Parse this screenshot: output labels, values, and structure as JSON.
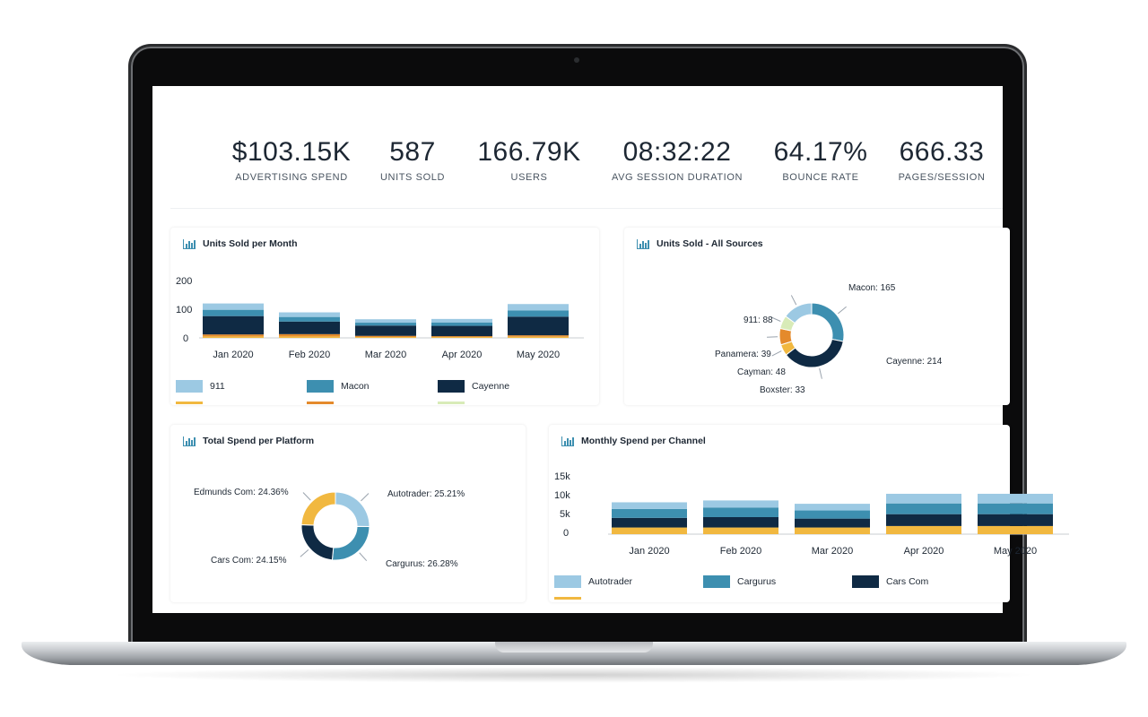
{
  "kpis": [
    {
      "value": "$103.15K",
      "label": "ADVERTISING SPEND"
    },
    {
      "value": "587",
      "label": "UNITS SOLD"
    },
    {
      "value": "166.79K",
      "label": "USERS"
    },
    {
      "value": "08:32:22",
      "label": "AVG SESSION DURATION"
    },
    {
      "value": "64.17%",
      "label": "BOUNCE RATE"
    },
    {
      "value": "666.33",
      "label": "PAGES/SESSION"
    }
  ],
  "colors": {
    "light_blue": "#9cc9e3",
    "mid_blue": "#3d8fb0",
    "navy": "#0f2a44",
    "yellow": "#f1b840",
    "orange": "#e48a2c",
    "pale_green": "#d8ebb8"
  },
  "cards": {
    "units_month": {
      "title": "Units Sold per Month"
    },
    "units_sources": {
      "title": "Units Sold - All Sources"
    },
    "spend_platform": {
      "title": "Total Spend per Platform"
    },
    "spend_channel": {
      "title": "Monthly Spend per Channel"
    }
  },
  "chart_data": [
    {
      "type": "bar",
      "stacked": true,
      "title": "Units Sold per Month",
      "categories": [
        "Jan 2020",
        "Feb 2020",
        "Mar 2020",
        "Apr 2020",
        "May 2020"
      ],
      "y_ticks": [
        "200",
        "100",
        "0"
      ],
      "ylim": [
        0,
        200
      ],
      "series": [
        {
          "name": "",
          "color": "#f1b840",
          "values": [
            5,
            5,
            3,
            3,
            4
          ]
        },
        {
          "name": "",
          "color": "#e48a2c",
          "values": [
            7,
            8,
            4,
            3,
            5
          ]
        },
        {
          "name": "Cayenne",
          "color": "#0f2a44",
          "values": [
            64,
            44,
            36,
            36,
            65
          ]
        },
        {
          "name": "Macon",
          "color": "#3d8fb0",
          "values": [
            22,
            16,
            10,
            12,
            22
          ]
        },
        {
          "name": "911",
          "color": "#9cc9e3",
          "values": [
            22,
            16,
            12,
            12,
            22
          ]
        }
      ],
      "legend": [
        {
          "name": "911",
          "color": "#9cc9e3"
        },
        {
          "name": "Macon",
          "color": "#3d8fb0"
        },
        {
          "name": "Cayenne",
          "color": "#0f2a44"
        }
      ],
      "legend_partial_colors": [
        "#f1b840",
        "#e48a2c",
        "#d8ebb8"
      ]
    },
    {
      "type": "pie",
      "donut": true,
      "title": "Units Sold - All Sources",
      "slices": [
        {
          "label": "Macon: 165",
          "value": 165,
          "color": "#3d8fb0"
        },
        {
          "label": "Cayenne: 214",
          "value": 214,
          "color": "#0f2a44"
        },
        {
          "label": "Boxster: 33",
          "value": 33,
          "color": "#f1b840"
        },
        {
          "label": "Cayman: 48",
          "value": 48,
          "color": "#e48a2c"
        },
        {
          "label": "Panamera: 39",
          "value": 39,
          "color": "#d8ebb8"
        },
        {
          "label": "911: 88",
          "value": 88,
          "color": "#9cc9e3"
        }
      ]
    },
    {
      "type": "pie",
      "donut": true,
      "title": "Total Spend per Platform",
      "slices": [
        {
          "label": "Autotrader: 25.21%",
          "value": 25.21,
          "color": "#9cc9e3"
        },
        {
          "label": "Cargurus: 26.28%",
          "value": 26.28,
          "color": "#3d8fb0"
        },
        {
          "label": "Cars Com: 24.15%",
          "value": 24.15,
          "color": "#0f2a44"
        },
        {
          "label": "Edmunds Com: 24.36%",
          "value": 24.36,
          "color": "#f1b840"
        }
      ]
    },
    {
      "type": "bar",
      "stacked": true,
      "title": "Monthly Spend per Channel",
      "categories": [
        "Jan 2020",
        "Feb 2020",
        "Mar 2020",
        "Apr 2020",
        "May 2020"
      ],
      "y_ticks": [
        "15k",
        "10k",
        "5k",
        "0"
      ],
      "ylim": [
        0,
        15000
      ],
      "series": [
        {
          "name": "",
          "color": "#f1b840",
          "values": [
            1800,
            1800,
            1800,
            2200,
            2200
          ]
        },
        {
          "name": "Cars Com",
          "color": "#0f2a44",
          "values": [
            2600,
            2800,
            2400,
            3200,
            3200
          ]
        },
        {
          "name": "Cargurus",
          "color": "#3d8fb0",
          "values": [
            2400,
            2600,
            2200,
            2900,
            2900
          ]
        },
        {
          "name": "Autotrader",
          "color": "#9cc9e3",
          "values": [
            1800,
            1900,
            1800,
            2600,
            2600
          ]
        }
      ],
      "legend": [
        {
          "name": "Autotrader",
          "color": "#9cc9e3"
        },
        {
          "name": "Cargurus",
          "color": "#3d8fb0"
        },
        {
          "name": "Cars Com",
          "color": "#0f2a44"
        }
      ],
      "legend_partial_colors": [
        "#f1b840"
      ]
    }
  ]
}
